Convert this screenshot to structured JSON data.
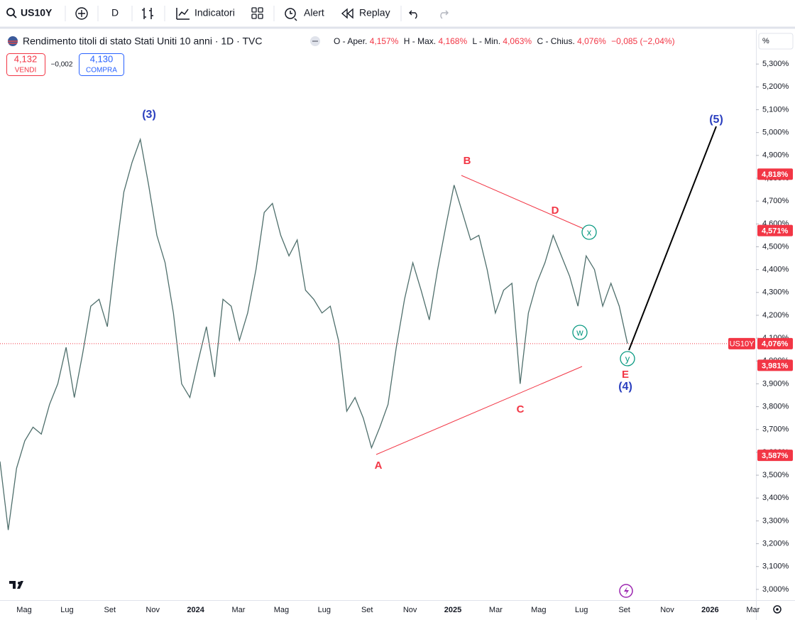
{
  "toolbar": {
    "symbol": "US10Y",
    "interval": "D",
    "indicators": "Indicatori",
    "alert": "Alert",
    "replay": "Replay"
  },
  "legend": {
    "title": "Rendimento titoli di stato Stati Uniti 10 anni · 1D · TVC",
    "open_label": "O - Aper.",
    "open": "4,157%",
    "high_label": "H - Max.",
    "high": "4,168%",
    "low_label": "L - Min.",
    "low": "4,063%",
    "close_label": "C - Chius.",
    "close": "4,076%",
    "change": "−0,085 (−2,04%)"
  },
  "trade": {
    "sell_price": "4,132",
    "sell_label": "VENDI",
    "spread": "−0,002",
    "buy_price": "4,130",
    "buy_label": "COMPRA"
  },
  "chart_data": {
    "type": "line",
    "y_unit": "%",
    "color": "#4f6f6c",
    "values": [
      3.56,
      3.26,
      3.53,
      3.65,
      3.71,
      3.68,
      3.81,
      3.9,
      4.06,
      3.84,
      4.03,
      4.24,
      4.27,
      4.15,
      4.46,
      4.74,
      4.87,
      4.97,
      4.77,
      4.55,
      4.43,
      4.21,
      3.9,
      3.84,
      4.0,
      4.15,
      3.93,
      4.27,
      4.24,
      4.09,
      4.21,
      4.4,
      4.65,
      4.69,
      4.55,
      4.46,
      4.53,
      4.31,
      4.27,
      4.21,
      4.24,
      4.09,
      3.78,
      3.84,
      3.75,
      3.62,
      3.71,
      3.81,
      4.06,
      4.27,
      4.43,
      4.31,
      4.18,
      4.4,
      4.59,
      4.77,
      4.65,
      4.53,
      4.55,
      4.4,
      4.21,
      4.31,
      4.34,
      3.9,
      4.21,
      4.34,
      4.43,
      4.55,
      4.46,
      4.37,
      4.24,
      4.46,
      4.4,
      4.24,
      4.34,
      4.24,
      4.076
    ],
    "ylim": [
      2.953,
      5.456
    ],
    "yticks": [
      {
        "value": 3.0,
        "label": "3,000%"
      },
      {
        "value": 3.1,
        "label": "3,100%"
      },
      {
        "value": 3.2,
        "label": "3,200%"
      },
      {
        "value": 3.3,
        "label": "3,300%"
      },
      {
        "value": 3.4,
        "label": "3,400%"
      },
      {
        "value": 3.5,
        "label": "3,500%"
      },
      {
        "value": 3.6,
        "label": "3,600%"
      },
      {
        "value": 3.7,
        "label": "3,700%"
      },
      {
        "value": 3.8,
        "label": "3,800%"
      },
      {
        "value": 3.9,
        "label": "3,900%"
      },
      {
        "value": 4.0,
        "label": "4,000%"
      },
      {
        "value": 4.1,
        "label": "4,100%"
      },
      {
        "value": 4.2,
        "label": "4,200%"
      },
      {
        "value": 4.3,
        "label": "4,300%"
      },
      {
        "value": 4.4,
        "label": "4,400%"
      },
      {
        "value": 4.5,
        "label": "4,500%"
      },
      {
        "value": 4.6,
        "label": "4,600%"
      },
      {
        "value": 4.7,
        "label": "4,700%"
      },
      {
        "value": 4.8,
        "label": "4,800%"
      },
      {
        "value": 4.9,
        "label": "4,900%"
      },
      {
        "value": 5.0,
        "label": "5,000%"
      },
      {
        "value": 5.1,
        "label": "5,100%"
      },
      {
        "value": 5.2,
        "label": "5,200%"
      },
      {
        "value": 5.3,
        "label": "5,300%"
      }
    ],
    "x_labels": [
      "Mag",
      "Lug",
      "Set",
      "Nov",
      "2024",
      "Mar",
      "Mag",
      "Lug",
      "Set",
      "Nov",
      "2025",
      "Mar",
      "Mag",
      "Lug",
      "Set",
      "Nov",
      "2026",
      "Mar"
    ],
    "price_labels": [
      {
        "value": 4.818,
        "label": "4,818%"
      },
      {
        "value": 4.571,
        "label": "4,571%"
      },
      {
        "value": 4.076,
        "label": "4,076%"
      },
      {
        "value": 3.981,
        "label": "3,981%"
      },
      {
        "value": 3.587,
        "label": "3,587%"
      }
    ],
    "last_symbol": "US10Y",
    "annotations": [
      "(3)",
      "B",
      "D",
      "A",
      "C",
      "E",
      "(4)",
      "(5)",
      "x",
      "w",
      "y"
    ]
  }
}
